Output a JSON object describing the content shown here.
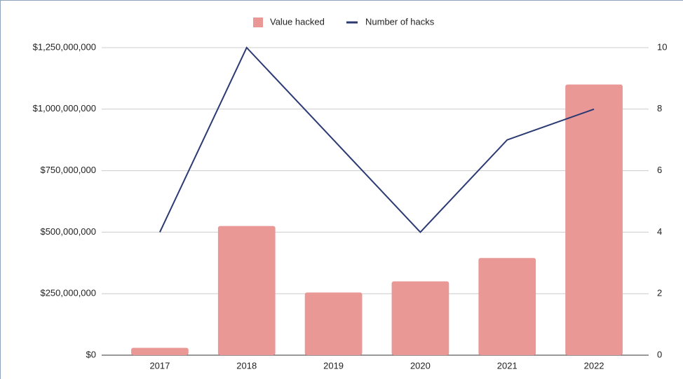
{
  "chart_data": {
    "type": "bar",
    "categories": [
      "2017",
      "2018",
      "2019",
      "2020",
      "2021",
      "2022"
    ],
    "series": [
      {
        "name": "Value hacked",
        "color": "#e99896",
        "type": "bar",
        "values": [
          30000000,
          525000000,
          255000000,
          300000000,
          395000000,
          1100000000
        ]
      },
      {
        "name": "Number of hacks",
        "color": "#2b3a73",
        "type": "line",
        "axis": "y2",
        "values": [
          4,
          10,
          7,
          4,
          7,
          8
        ]
      }
    ],
    "ylim": [
      0,
      1250000000
    ],
    "yticks": [
      {
        "value": 0,
        "label": "$0"
      },
      {
        "value": 250000000,
        "label": "$250,000,000"
      },
      {
        "value": 500000000,
        "label": "$500,000,000"
      },
      {
        "value": 750000000,
        "label": "$750,000,000"
      },
      {
        "value": 1000000000,
        "label": "$1,000,000,000"
      },
      {
        "value": 1250000000,
        "label": "$1,250,000,000"
      }
    ],
    "y2lim": [
      0,
      10
    ],
    "y2ticks": [
      0,
      2,
      4,
      6,
      8,
      10
    ],
    "grid": true,
    "legend": "top"
  }
}
